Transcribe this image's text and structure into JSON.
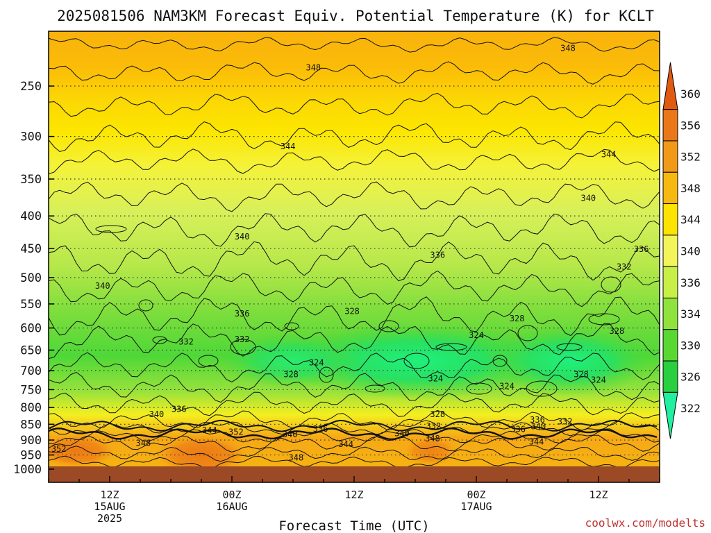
{
  "title": "2025081506 NAM3KM Forecast Equiv. Potential Temperature (K) for KCLT",
  "credit": "coolwx.com/modelts",
  "chart_data": {
    "type": "heatmap",
    "title": "2025081506 NAM3KM Forecast Equiv. Potential Temperature (K) for KCLT",
    "xlabel": "Forecast Time (UTC)",
    "ylabel": "",
    "y_scale": "log-pressure",
    "y_ticks": [
      250,
      300,
      350,
      400,
      450,
      500,
      550,
      600,
      650,
      700,
      750,
      800,
      850,
      900,
      950,
      1000
    ],
    "x_ticks": [
      {
        "lines": [
          "12Z",
          "15AUG",
          "2025"
        ],
        "hour": 6
      },
      {
        "lines": [
          "00Z",
          "16AUG"
        ],
        "hour": 18
      },
      {
        "lines": [
          "12Z"
        ],
        "hour": 30
      },
      {
        "lines": [
          "00Z",
          "17AUG"
        ],
        "hour": 42
      },
      {
        "lines": [
          "12Z"
        ],
        "hour": 54
      }
    ],
    "colorbar": {
      "labels": [
        360,
        356,
        352,
        348,
        344,
        340,
        336,
        334,
        330,
        326,
        322
      ],
      "colors": [
        "#e05a10",
        "#ea7818",
        "#f29a18",
        "#f7b810",
        "#fce400",
        "#f2f45a",
        "#c8ee48",
        "#90e23c",
        "#5ad832",
        "#28d040",
        "#20f0a0"
      ]
    },
    "contour_labels": [
      {
        "text": "348",
        "hour": 26.0,
        "p": 234
      },
      {
        "text": "348",
        "hour": 51.0,
        "p": 218
      },
      {
        "text": "344",
        "hour": 23.5,
        "p": 311
      },
      {
        "text": "344",
        "hour": 55.0,
        "p": 320
      },
      {
        "text": "340",
        "hour": 19.0,
        "p": 431
      },
      {
        "text": "340",
        "hour": 53.0,
        "p": 375
      },
      {
        "text": "340",
        "hour": 5.3,
        "p": 515
      },
      {
        "text": "336",
        "hour": 19.0,
        "p": 570
      },
      {
        "text": "336",
        "hour": 38.2,
        "p": 461
      },
      {
        "text": "336",
        "hour": 58.2,
        "p": 451
      },
      {
        "text": "332",
        "hour": 13.5,
        "p": 631
      },
      {
        "text": "332",
        "hour": 19.0,
        "p": 625
      },
      {
        "text": "332",
        "hour": 56.5,
        "p": 481
      },
      {
        "text": "328",
        "hour": 29.8,
        "p": 565
      },
      {
        "text": "328",
        "hour": 46.0,
        "p": 580
      },
      {
        "text": "328",
        "hour": 55.8,
        "p": 607
      },
      {
        "text": "324",
        "hour": 42.0,
        "p": 616
      },
      {
        "text": "324",
        "hour": 26.3,
        "p": 680
      },
      {
        "text": "328",
        "hour": 23.8,
        "p": 710
      },
      {
        "text": "324",
        "hour": 38.0,
        "p": 721
      },
      {
        "text": "324",
        "hour": 45.0,
        "p": 741
      },
      {
        "text": "324",
        "hour": 54.0,
        "p": 724
      },
      {
        "text": "328",
        "hour": 52.3,
        "p": 710
      },
      {
        "text": "340",
        "hour": 10.6,
        "p": 820
      },
      {
        "text": "336",
        "hour": 12.8,
        "p": 805
      },
      {
        "text": "344",
        "hour": 15.8,
        "p": 869
      },
      {
        "text": "352",
        "hour": 18.4,
        "p": 874
      },
      {
        "text": "340",
        "hour": 23.7,
        "p": 882
      },
      {
        "text": "336",
        "hour": 26.7,
        "p": 864
      },
      {
        "text": "328",
        "hour": 38.2,
        "p": 820
      },
      {
        "text": "332",
        "hour": 37.8,
        "p": 856
      },
      {
        "text": "340",
        "hour": 34.7,
        "p": 879
      },
      {
        "text": "348",
        "hour": 37.7,
        "p": 895
      },
      {
        "text": "336",
        "hour": 46.1,
        "p": 865
      },
      {
        "text": "340",
        "hour": 48.1,
        "p": 857
      },
      {
        "text": "336",
        "hour": 48.0,
        "p": 837
      },
      {
        "text": "332",
        "hour": 50.7,
        "p": 842
      },
      {
        "text": "344",
        "hour": 29.2,
        "p": 914
      },
      {
        "text": "344",
        "hour": 47.9,
        "p": 905
      },
      {
        "text": "348",
        "hour": 9.3,
        "p": 910
      },
      {
        "text": "352",
        "hour": 1.0,
        "p": 930
      },
      {
        "text": "348",
        "hour": 24.3,
        "p": 959
      }
    ]
  }
}
